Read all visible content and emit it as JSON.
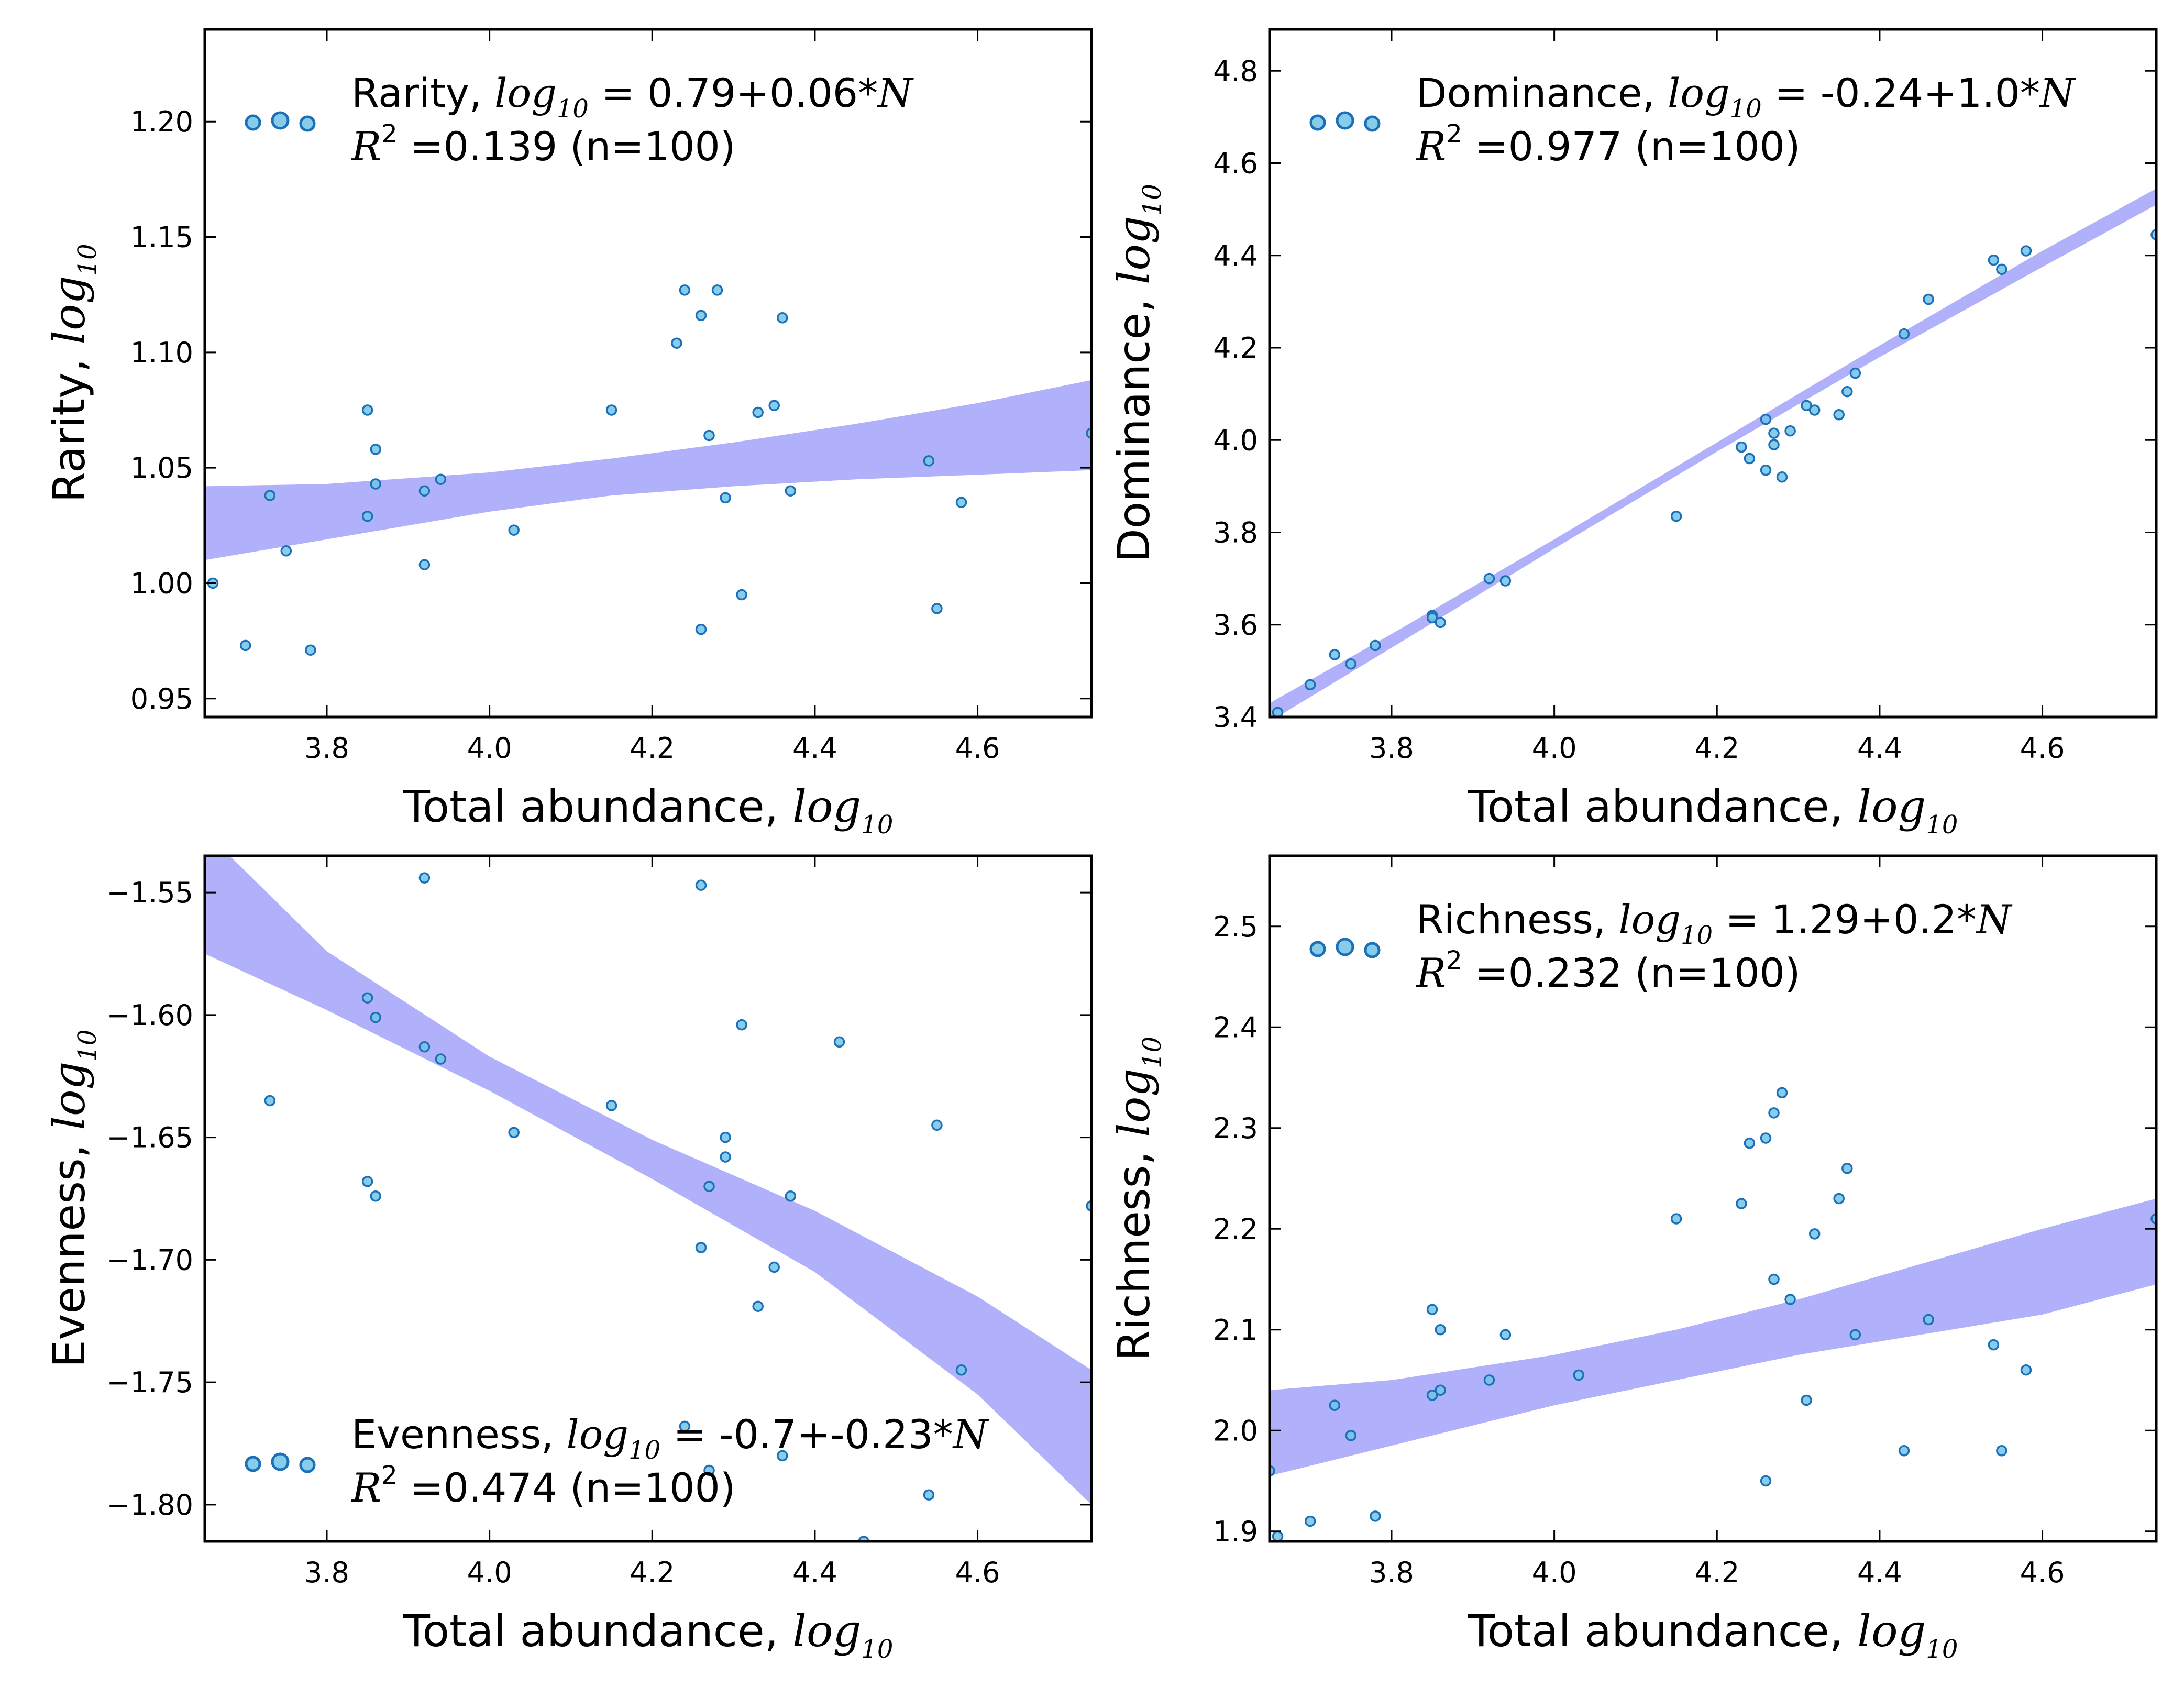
{
  "chart_data": [
    {
      "type": "scatter",
      "xlabel": "Total abundance,",
      "xlabel_math": "log",
      "xlabel_sub": "10",
      "ylabel": "Rarity,",
      "ylabel_math": "log",
      "ylabel_sub": "10",
      "xlim": [
        3.65,
        4.74
      ],
      "ylim": [
        0.942,
        1.24
      ],
      "xticks": [
        "3.8",
        "4.0",
        "4.2",
        "4.4",
        "4.6"
      ],
      "xtick_values": [
        3.8,
        4.0,
        4.2,
        4.4,
        4.6
      ],
      "yticks": [
        "0.95",
        "1.00",
        "1.05",
        "1.10",
        "1.15",
        "1.20"
      ],
      "ytick_values": [
        0.95,
        1.0,
        1.05,
        1.1,
        1.15,
        1.2
      ],
      "legend": {
        "name": "Rarity,",
        "eq_math": "log",
        "eq_sub": "10",
        "eq": "= 0.79+0.06*",
        "eq_var": "N",
        "r2_label": "R",
        "r2_sup": "2",
        "r2_text": "=0.139 (n=100)",
        "position": "top-left"
      },
      "band": {
        "x": [
          3.65,
          3.8,
          4.0,
          4.15,
          4.3,
          4.45,
          4.6,
          4.74
        ],
        "lower": [
          1.01,
          1.019,
          1.031,
          1.038,
          1.042,
          1.045,
          1.047,
          1.049
        ],
        "upper": [
          1.042,
          1.043,
          1.048,
          1.054,
          1.061,
          1.069,
          1.078,
          1.088
        ]
      },
      "points": [
        [
          3.66,
          1.0
        ],
        [
          3.66,
          0.94
        ],
        [
          3.7,
          0.973
        ],
        [
          3.73,
          1.038
        ],
        [
          3.75,
          1.014
        ],
        [
          3.78,
          0.971
        ],
        [
          3.85,
          1.075
        ],
        [
          3.85,
          1.029
        ],
        [
          3.86,
          1.058
        ],
        [
          3.86,
          1.043
        ],
        [
          3.92,
          1.008
        ],
        [
          3.92,
          1.04
        ],
        [
          3.94,
          1.045
        ],
        [
          4.03,
          1.023
        ],
        [
          4.15,
          1.075
        ],
        [
          4.23,
          1.104
        ],
        [
          4.24,
          1.127
        ],
        [
          4.26,
          1.116
        ],
        [
          4.26,
          0.98
        ],
        [
          4.27,
          1.064
        ],
        [
          4.28,
          1.127
        ],
        [
          4.29,
          1.037
        ],
        [
          4.31,
          0.995
        ],
        [
          4.33,
          1.074
        ],
        [
          4.35,
          1.077
        ],
        [
          4.36,
          1.115
        ],
        [
          4.37,
          1.04
        ],
        [
          4.54,
          1.053
        ],
        [
          4.55,
          0.989
        ],
        [
          4.58,
          1.035
        ],
        [
          4.74,
          1.065
        ]
      ]
    },
    {
      "type": "scatter",
      "xlabel": "Total abundance,",
      "xlabel_math": "log",
      "xlabel_sub": "10",
      "ylabel": "Dominance,",
      "ylabel_math": "log",
      "ylabel_sub": "10",
      "xlim": [
        3.65,
        4.74
      ],
      "ylim": [
        3.4,
        4.89
      ],
      "xticks": [
        "3.8",
        "4.0",
        "4.2",
        "4.4",
        "4.6"
      ],
      "xtick_values": [
        3.8,
        4.0,
        4.2,
        4.4,
        4.6
      ],
      "yticks": [
        "3.4",
        "3.6",
        "3.8",
        "4.0",
        "4.2",
        "4.4",
        "4.6",
        "4.8"
      ],
      "ytick_values": [
        3.4,
        3.6,
        3.8,
        4.0,
        4.2,
        4.4,
        4.6,
        4.8
      ],
      "legend": {
        "name": "Dominance,",
        "eq_math": "log",
        "eq_sub": "10",
        "eq": "= -0.24+1.0*",
        "eq_var": "N",
        "r2_label": "R",
        "r2_sup": "2",
        "r2_text": "=0.977 (n=100)",
        "position": "top-left"
      },
      "band": {
        "x": [
          3.65,
          3.8,
          4.0,
          4.2,
          4.4,
          4.6,
          4.74
        ],
        "lower": [
          3.39,
          3.55,
          3.765,
          3.975,
          4.18,
          4.375,
          4.51
        ],
        "upper": [
          3.43,
          3.58,
          3.785,
          3.995,
          4.205,
          4.41,
          4.545
        ]
      },
      "points": [
        [
          3.66,
          3.41
        ],
        [
          3.7,
          3.47
        ],
        [
          3.73,
          3.535
        ],
        [
          3.75,
          3.515
        ],
        [
          3.78,
          3.555
        ],
        [
          3.85,
          3.62
        ],
        [
          3.85,
          3.615
        ],
        [
          3.86,
          3.605
        ],
        [
          3.92,
          3.7
        ],
        [
          3.94,
          3.695
        ],
        [
          4.15,
          3.835
        ],
        [
          4.23,
          3.985
        ],
        [
          4.24,
          3.96
        ],
        [
          4.26,
          3.935
        ],
        [
          4.26,
          4.045
        ],
        [
          4.27,
          3.99
        ],
        [
          4.27,
          4.015
        ],
        [
          4.28,
          3.92
        ],
        [
          4.29,
          4.02
        ],
        [
          4.31,
          4.075
        ],
        [
          4.32,
          4.065
        ],
        [
          4.35,
          4.055
        ],
        [
          4.36,
          4.105
        ],
        [
          4.37,
          4.145
        ],
        [
          4.43,
          4.23
        ],
        [
          4.46,
          4.305
        ],
        [
          4.54,
          4.39
        ],
        [
          4.55,
          4.37
        ],
        [
          4.58,
          4.41
        ],
        [
          4.74,
          4.445
        ]
      ]
    },
    {
      "type": "scatter",
      "xlabel": "Total abundance,",
      "xlabel_math": "log",
      "xlabel_sub": "10",
      "ylabel": "Evenness,",
      "ylabel_math": "log",
      "ylabel_sub": "10",
      "xlim": [
        3.65,
        4.74
      ],
      "ylim": [
        -1.815,
        -1.535
      ],
      "xticks": [
        "3.8",
        "4.0",
        "4.2",
        "4.4",
        "4.6"
      ],
      "xtick_values": [
        3.8,
        4.0,
        4.2,
        4.4,
        4.6
      ],
      "yticks": [
        "−1.80",
        "−1.75",
        "−1.70",
        "−1.65",
        "−1.60",
        "−1.55"
      ],
      "ytick_values": [
        -1.8,
        -1.75,
        -1.7,
        -1.65,
        -1.6,
        -1.55
      ],
      "legend": {
        "name": "Evenness,",
        "eq_math": "log",
        "eq_sub": "10",
        "eq": "= -0.7+-0.23*",
        "eq_var": "N",
        "r2_label": "R",
        "r2_sup": "2",
        "r2_text": "=0.474 (n=100)",
        "position": "bottom-left"
      },
      "band": {
        "x": [
          3.65,
          3.8,
          4.0,
          4.2,
          4.4,
          4.6,
          4.74
        ],
        "lower": [
          -1.575,
          -1.598,
          -1.631,
          -1.667,
          -1.705,
          -1.755,
          -1.8
        ],
        "upper": [
          -1.525,
          -1.574,
          -1.617,
          -1.651,
          -1.68,
          -1.715,
          -1.745
        ]
      },
      "points": [
        [
          3.73,
          -1.635
        ],
        [
          3.85,
          -1.593
        ],
        [
          3.85,
          -1.668
        ],
        [
          3.86,
          -1.601
        ],
        [
          3.86,
          -1.674
        ],
        [
          3.92,
          -1.544
        ],
        [
          3.92,
          -1.613
        ],
        [
          3.94,
          -1.618
        ],
        [
          4.03,
          -1.648
        ],
        [
          4.15,
          -1.637
        ],
        [
          4.24,
          -1.768
        ],
        [
          4.26,
          -1.547
        ],
        [
          4.26,
          -1.695
        ],
        [
          4.27,
          -1.67
        ],
        [
          4.27,
          -1.786
        ],
        [
          4.29,
          -1.658
        ],
        [
          4.29,
          -1.65
        ],
        [
          4.31,
          -1.604
        ],
        [
          4.33,
          -1.719
        ],
        [
          4.35,
          -1.703
        ],
        [
          4.36,
          -1.78
        ],
        [
          4.37,
          -1.674
        ],
        [
          4.43,
          -1.611
        ],
        [
          4.46,
          -1.815
        ],
        [
          4.54,
          -1.796
        ],
        [
          4.55,
          -1.645
        ],
        [
          4.58,
          -1.745
        ],
        [
          4.74,
          -1.678
        ]
      ]
    },
    {
      "type": "scatter",
      "xlabel": "Total abundance,",
      "xlabel_math": "log",
      "xlabel_sub": "10",
      "ylabel": "Richness,",
      "ylabel_math": "log",
      "ylabel_sub": "10",
      "xlim": [
        3.65,
        4.74
      ],
      "ylim": [
        1.89,
        2.57
      ],
      "xticks": [
        "3.8",
        "4.0",
        "4.2",
        "4.4",
        "4.6"
      ],
      "xtick_values": [
        3.8,
        4.0,
        4.2,
        4.4,
        4.6
      ],
      "yticks": [
        "1.9",
        "2.0",
        "2.1",
        "2.2",
        "2.3",
        "2.4",
        "2.5"
      ],
      "ytick_values": [
        1.9,
        2.0,
        2.1,
        2.2,
        2.3,
        2.4,
        2.5
      ],
      "legend": {
        "name": "Richness,",
        "eq_math": "log",
        "eq_sub": "10",
        "eq": "= 1.29+0.2*",
        "eq_var": "N",
        "r2_label": "R",
        "r2_sup": "2",
        "r2_text": "=0.232 (n=100)",
        "position": "top-left"
      },
      "band": {
        "x": [
          3.65,
          3.8,
          4.0,
          4.15,
          4.3,
          4.45,
          4.6,
          4.74
        ],
        "lower": [
          1.955,
          1.985,
          2.025,
          2.05,
          2.075,
          2.095,
          2.115,
          2.145
        ],
        "upper": [
          2.04,
          2.05,
          2.075,
          2.1,
          2.13,
          2.165,
          2.2,
          2.23
        ]
      },
      "points": [
        [
          3.65,
          1.96
        ],
        [
          3.66,
          1.895
        ],
        [
          3.7,
          1.91
        ],
        [
          3.73,
          2.025
        ],
        [
          3.75,
          1.995
        ],
        [
          3.78,
          1.915
        ],
        [
          3.85,
          2.12
        ],
        [
          3.85,
          2.035
        ],
        [
          3.86,
          2.1
        ],
        [
          3.86,
          2.04
        ],
        [
          3.92,
          2.05
        ],
        [
          3.94,
          2.095
        ],
        [
          4.03,
          2.055
        ],
        [
          4.15,
          2.21
        ],
        [
          4.23,
          2.225
        ],
        [
          4.24,
          2.285
        ],
        [
          4.26,
          2.29
        ],
        [
          4.26,
          1.95
        ],
        [
          4.27,
          2.315
        ],
        [
          4.27,
          2.15
        ],
        [
          4.28,
          2.335
        ],
        [
          4.29,
          2.13
        ],
        [
          4.31,
          2.03
        ],
        [
          4.32,
          2.195
        ],
        [
          4.35,
          2.23
        ],
        [
          4.36,
          2.26
        ],
        [
          4.37,
          2.095
        ],
        [
          4.43,
          1.98
        ],
        [
          4.46,
          2.11
        ],
        [
          4.54,
          2.085
        ],
        [
          4.55,
          1.98
        ],
        [
          4.58,
          2.06
        ],
        [
          4.74,
          2.21
        ]
      ]
    }
  ],
  "colors": {
    "band": "#b0b0fb",
    "point_fill": "#73c3e8",
    "point_stroke": "#1b70b7",
    "axis": "#000000"
  }
}
